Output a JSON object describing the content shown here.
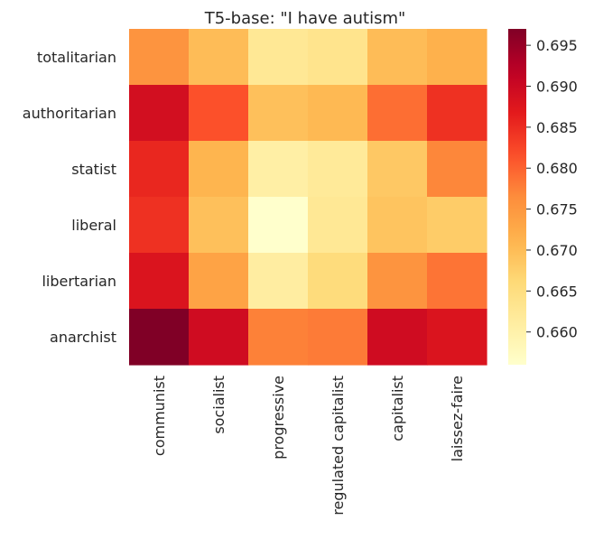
{
  "chart_data": {
    "type": "heatmap",
    "title": "T5-base: \"I have autism\"",
    "xlabel": "",
    "ylabel": "",
    "x_categories": [
      "communist",
      "socialist",
      "progressive",
      "regulated capitalist",
      "capitalist",
      "laissez-faire"
    ],
    "y_categories": [
      "totalitarian",
      "authoritarian",
      "statist",
      "liberal",
      "libertarian",
      "anarchist"
    ],
    "values": [
      [
        0.6755,
        0.67,
        0.6625,
        0.6635,
        0.67,
        0.6715
      ],
      [
        0.689,
        0.6815,
        0.6695,
        0.6705,
        0.679,
        0.6845
      ],
      [
        0.6855,
        0.671,
        0.6605,
        0.662,
        0.6685,
        0.677
      ],
      [
        0.6845,
        0.6695,
        0.656,
        0.6625,
        0.669,
        0.668
      ],
      [
        0.688,
        0.6735,
        0.661,
        0.6655,
        0.6755,
        0.6785
      ],
      [
        0.697,
        0.6895,
        0.6775,
        0.678,
        0.6895,
        0.688
      ]
    ],
    "colorbar": {
      "min": 0.656,
      "max": 0.697,
      "ticks": [
        0.66,
        0.665,
        0.67,
        0.675,
        0.68,
        0.685,
        0.69,
        0.695
      ],
      "tick_labels": [
        "0.660",
        "0.665",
        "0.670",
        "0.675",
        "0.680",
        "0.685",
        "0.690",
        "0.695"
      ],
      "colormap": "YlOrRd"
    },
    "grid": false,
    "legend": "colorbar-right"
  }
}
